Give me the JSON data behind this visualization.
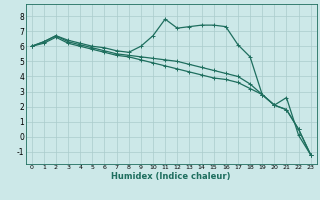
{
  "title": "",
  "xlabel": "Humidex (Indice chaleur)",
  "ylabel": "",
  "bg_color": "#cce8e8",
  "grid_color": "#aacccc",
  "line_color": "#1e6e5e",
  "xlim": [
    -0.5,
    23.5
  ],
  "ylim": [
    -1.8,
    8.8
  ],
  "xticks": [
    0,
    1,
    2,
    3,
    4,
    5,
    6,
    7,
    8,
    9,
    10,
    11,
    12,
    13,
    14,
    15,
    16,
    17,
    18,
    19,
    20,
    21,
    22,
    23
  ],
  "yticks": [
    -1,
    0,
    1,
    2,
    3,
    4,
    5,
    6,
    7,
    8
  ],
  "line1_x": [
    0,
    1,
    2,
    3,
    4,
    5,
    6,
    7,
    8,
    9,
    10,
    11,
    12,
    13,
    14,
    15,
    16,
    17,
    18,
    19,
    20,
    21,
    22,
    23
  ],
  "line1_y": [
    6.0,
    6.3,
    6.7,
    6.4,
    6.2,
    6.0,
    5.9,
    5.7,
    5.6,
    6.0,
    6.7,
    7.8,
    7.2,
    7.3,
    7.4,
    7.4,
    7.3,
    6.1,
    5.3,
    2.8,
    2.1,
    2.6,
    0.1,
    -1.2
  ],
  "line2_x": [
    0,
    1,
    2,
    3,
    4,
    5,
    6,
    7,
    8,
    9,
    10,
    11,
    12,
    13,
    14,
    15,
    16,
    17,
    18,
    19,
    20,
    21,
    22,
    23
  ],
  "line2_y": [
    6.0,
    6.3,
    6.7,
    6.3,
    6.1,
    5.9,
    5.7,
    5.5,
    5.4,
    5.3,
    5.2,
    5.1,
    5.0,
    4.8,
    4.6,
    4.4,
    4.2,
    4.0,
    3.5,
    2.8,
    2.1,
    1.8,
    0.5,
    -1.2
  ],
  "line3_x": [
    0,
    1,
    2,
    3,
    4,
    5,
    6,
    7,
    8,
    9,
    10,
    11,
    12,
    13,
    14,
    15,
    16,
    17,
    18,
    19,
    20,
    21,
    22,
    23
  ],
  "line3_y": [
    6.0,
    6.2,
    6.6,
    6.2,
    6.0,
    5.8,
    5.6,
    5.4,
    5.3,
    5.1,
    4.9,
    4.7,
    4.5,
    4.3,
    4.1,
    3.9,
    3.8,
    3.6,
    3.2,
    2.8,
    2.1,
    1.8,
    0.5,
    -1.2
  ],
  "marker": "+",
  "markersize": 3.5,
  "linewidth": 0.9
}
